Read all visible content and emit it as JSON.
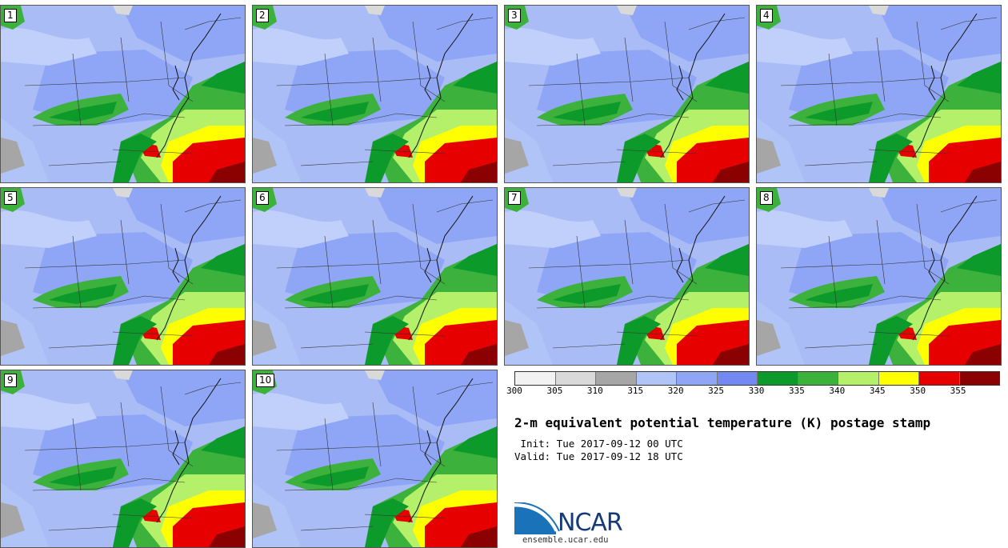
{
  "panels": [
    {
      "label": "1"
    },
    {
      "label": "2"
    },
    {
      "label": "3"
    },
    {
      "label": "4"
    },
    {
      "label": "5"
    },
    {
      "label": "6"
    },
    {
      "label": "7"
    },
    {
      "label": "8"
    },
    {
      "label": "9"
    },
    {
      "label": "10"
    }
  ],
  "colorbar": {
    "colors": [
      "#f2f2f2",
      "#d9d9d9",
      "#a6a6a6",
      "#b0c4f8",
      "#8ea6f5",
      "#7189f0",
      "#0c9a2a",
      "#3cb23c",
      "#b4f06a",
      "#ffff00",
      "#e60000",
      "#8b0000"
    ],
    "ticks": [
      "300",
      "305",
      "310",
      "315",
      "320",
      "325",
      "330",
      "335",
      "340",
      "345",
      "350",
      "355"
    ]
  },
  "title": "2-m equivalent potential temperature (K) postage stamp",
  "init_line": " Init: Tue 2017-09-12 00 UTC",
  "valid_line": "Valid: Tue 2017-09-12 18 UTC",
  "logo_text": "NCAR",
  "url": "ensemble.ucar.edu"
}
